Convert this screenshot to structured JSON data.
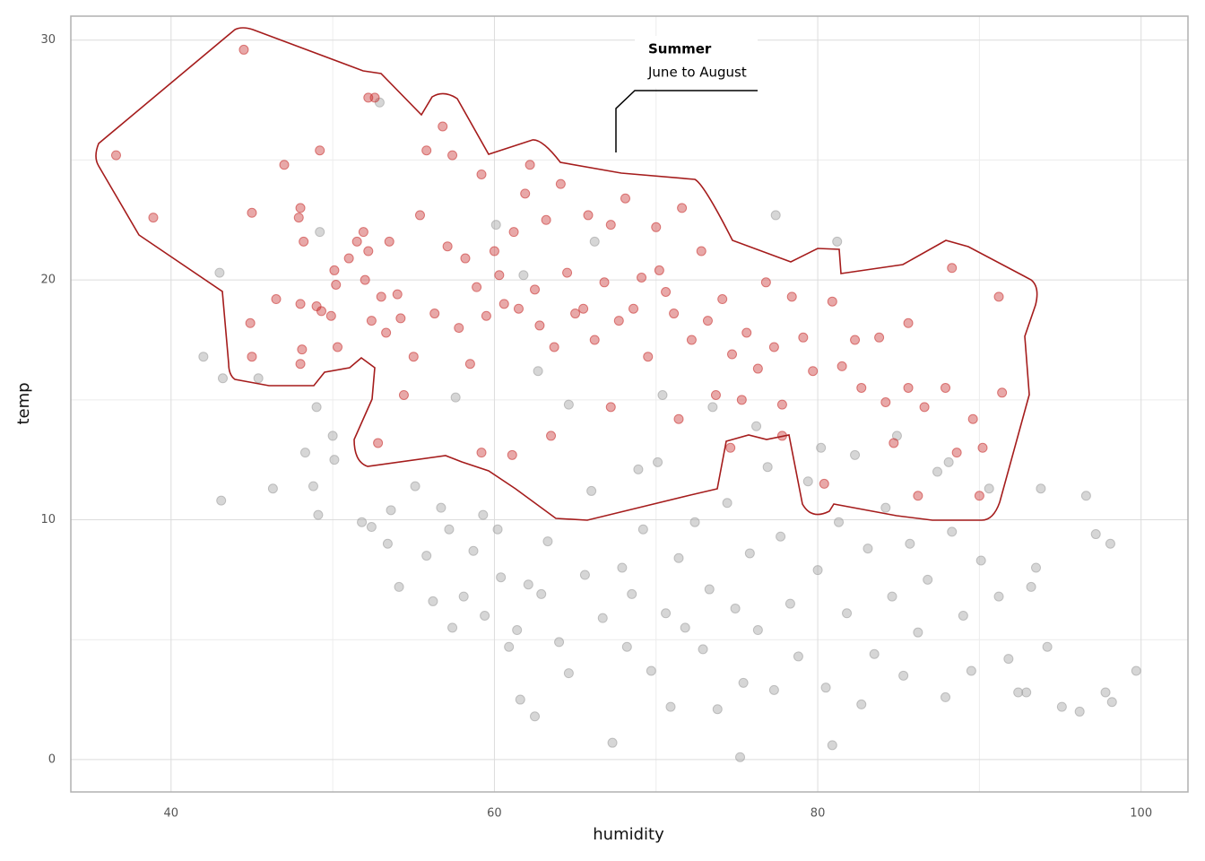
{
  "chart_data": {
    "type": "scatter",
    "xlabel": "humidity",
    "ylabel": "temp",
    "xlim": [
      33.8,
      102.9
    ],
    "ylim": [
      -1.35,
      31.0
    ],
    "xticks": [
      40,
      60,
      80,
      100
    ],
    "yticks": [
      0,
      10,
      20,
      30
    ],
    "x_minor_ticks": [
      50,
      70,
      90
    ],
    "y_minor_ticks": [
      5,
      15,
      25
    ],
    "grid": true,
    "annotation": {
      "title": "Summer",
      "text": "June to August"
    },
    "series": [
      {
        "color": "#9e9e9e",
        "x": [
          42,
          43,
          43.2,
          43.1,
          45.4,
          46.3,
          48.3,
          48.8,
          49,
          49.1,
          49.2,
          50,
          50.1,
          51.8,
          52.4,
          52.9,
          53.4,
          53.6,
          54.1,
          55.1,
          55.8,
          56.2,
          56.7,
          57.2,
          57.4,
          58.1,
          58.7,
          59.3,
          59.4,
          60.2,
          60.4,
          60.9,
          61.4,
          61.6,
          62.1,
          62.5,
          62.9,
          63.3,
          64,
          64.6,
          65.6,
          66,
          66.7,
          67.3,
          67.9,
          68.2,
          68.5,
          69.2,
          69.7,
          70.1,
          70.6,
          70.9,
          71.4,
          71.8,
          72.4,
          72.9,
          73.3,
          73.8,
          74.4,
          74.9,
          75.4,
          75.2,
          75.8,
          76.3,
          76.9,
          77.3,
          77.7,
          78.3,
          78.8,
          79.4,
          80,
          80.5,
          80.9,
          81.3,
          81.8,
          82.3,
          82.7,
          83.1,
          83.5,
          84.2,
          84.6,
          85.3,
          85.7,
          86.2,
          86.8,
          87.4,
          87.9,
          88.3,
          89,
          89.5,
          90.1,
          90.6,
          91.2,
          91.8,
          92.4,
          93.2,
          93.8,
          94.2,
          95.1,
          96.2,
          96.6,
          97.2,
          98.1,
          98.2,
          99.7,
          97.8,
          92.9,
          93.5,
          66.2,
          61.8,
          81.2,
          77.4,
          76.2,
          70.4,
          73.5,
          68.9,
          80.2,
          84.9,
          88.1,
          64.6,
          57.6,
          62.7,
          60.1
        ],
        "values": [
          16.8,
          20.3,
          15.9,
          10.8,
          15.9,
          11.3,
          12.8,
          11.4,
          14.7,
          10.2,
          22,
          13.5,
          12.5,
          9.9,
          9.7,
          27.4,
          9,
          10.4,
          7.2,
          11.4,
          8.5,
          6.6,
          10.5,
          9.6,
          5.5,
          6.8,
          8.7,
          10.2,
          6,
          9.6,
          7.6,
          4.7,
          5.4,
          2.5,
          7.3,
          1.8,
          6.9,
          9.1,
          4.9,
          3.6,
          7.7,
          11.2,
          5.9,
          0.7,
          8,
          4.7,
          6.9,
          9.6,
          3.7,
          12.4,
          6.1,
          2.2,
          8.4,
          5.5,
          9.9,
          4.6,
          7.1,
          2.1,
          10.7,
          6.3,
          3.2,
          0.1,
          8.6,
          5.4,
          12.2,
          2.9,
          9.3,
          6.5,
          4.3,
          11.6,
          7.9,
          3,
          0.6,
          9.9,
          6.1,
          12.7,
          2.3,
          8.8,
          4.4,
          10.5,
          6.8,
          3.5,
          9,
          5.3,
          7.5,
          12,
          2.6,
          9.5,
          6,
          3.7,
          8.3,
          11.3,
          6.8,
          4.2,
          2.8,
          7.2,
          11.3,
          4.7,
          2.2,
          2,
          11,
          9.4,
          9,
          2.4,
          3.7,
          2.8,
          2.8,
          8,
          21.6,
          20.2,
          21.6,
          22.7,
          13.9,
          15.2,
          14.7,
          12.1,
          13,
          13.5,
          12.4,
          14.8,
          15.1,
          16.2,
          22.3
        ]
      },
      {
        "color": "#c8302f",
        "x": [
          36.6,
          38.9,
          44.5,
          45,
          44.9,
          45,
          47,
          46.5,
          48,
          47.9,
          48.2,
          48,
          48.1,
          48,
          49.2,
          49,
          49.3,
          49.9,
          50.1,
          50.2,
          50.3,
          51,
          51.5,
          51.9,
          52,
          52.2,
          52.4,
          52.2,
          52.6,
          53,
          53.3,
          53.5,
          54,
          54.2,
          54.4,
          55,
          55.4,
          55.8,
          56.3,
          56.8,
          57.1,
          57.4,
          57.8,
          58.2,
          58.5,
          58.9,
          59.2,
          59.5,
          60,
          60.3,
          60.6,
          61.2,
          61.5,
          61.9,
          62.2,
          62.5,
          62.8,
          63.2,
          63.7,
          64.1,
          64.5,
          65,
          65.5,
          65.8,
          66.2,
          66.8,
          67.2,
          67.7,
          68.1,
          68.6,
          69.1,
          69.5,
          70,
          70.2,
          70.6,
          71.1,
          71.6,
          72.2,
          72.8,
          73.2,
          73.7,
          74.1,
          74.7,
          75.3,
          75.6,
          76.3,
          76.8,
          77.3,
          77.8,
          78.4,
          79.1,
          79.7,
          80.4,
          80.9,
          81.5,
          82.3,
          82.7,
          83.8,
          84.2,
          85.6,
          85.6,
          86.2,
          87.9,
          88.3,
          88.6,
          89.6,
          90,
          90.2,
          91.2,
          91.4,
          52.8,
          59.2,
          61.1,
          63.5,
          67.2,
          71.4,
          74.6,
          77.8,
          84.7,
          86.6
        ],
        "values": [
          25.2,
          22.6,
          29.6,
          22.8,
          18.2,
          16.8,
          24.8,
          19.2,
          23,
          22.6,
          21.6,
          19,
          17.1,
          16.5,
          25.4,
          18.9,
          18.7,
          18.5,
          20.4,
          19.8,
          17.2,
          20.9,
          21.6,
          22,
          20,
          21.2,
          18.3,
          27.6,
          27.6,
          19.3,
          17.8,
          21.6,
          19.4,
          18.4,
          15.2,
          16.8,
          22.7,
          25.4,
          18.6,
          26.4,
          21.4,
          25.2,
          18,
          20.9,
          16.5,
          19.7,
          24.4,
          18.5,
          21.2,
          20.2,
          19,
          22,
          18.8,
          23.6,
          24.8,
          19.6,
          18.1,
          22.5,
          17.2,
          24,
          20.3,
          18.6,
          18.8,
          22.7,
          17.5,
          19.9,
          22.3,
          18.3,
          23.4,
          18.8,
          20.1,
          16.8,
          22.2,
          20.4,
          19.5,
          18.6,
          23,
          17.5,
          21.2,
          18.3,
          15.2,
          19.2,
          16.9,
          15,
          17.8,
          16.3,
          19.9,
          17.2,
          14.8,
          19.3,
          17.6,
          16.2,
          11.5,
          19.1,
          16.4,
          17.5,
          15.5,
          17.6,
          14.9,
          18.2,
          15.5,
          11,
          15.5,
          20.5,
          12.8,
          14.2,
          11,
          13,
          19.3,
          15.3,
          13.2,
          12.8,
          12.7,
          13.5,
          14.7,
          14.2,
          13,
          13.5,
          13.2,
          14.7
        ]
      }
    ]
  }
}
